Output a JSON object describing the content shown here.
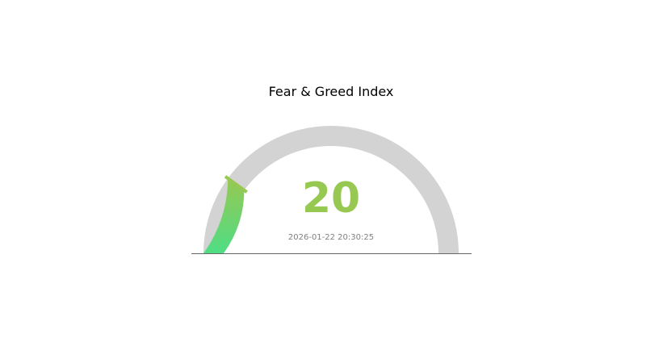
{
  "chart_data": {
    "type": "gauge",
    "title": "Fear & Greed Index",
    "value": 20,
    "value_label": "20",
    "range": [
      0,
      100
    ],
    "timestamp": "2026-01-22 20:30:25",
    "colors": {
      "fill_start": "#4fdd85",
      "fill_end": "#96c852",
      "track": "#d3d3d3",
      "value_text": "#96c852",
      "timestamp_text": "#808080"
    }
  }
}
